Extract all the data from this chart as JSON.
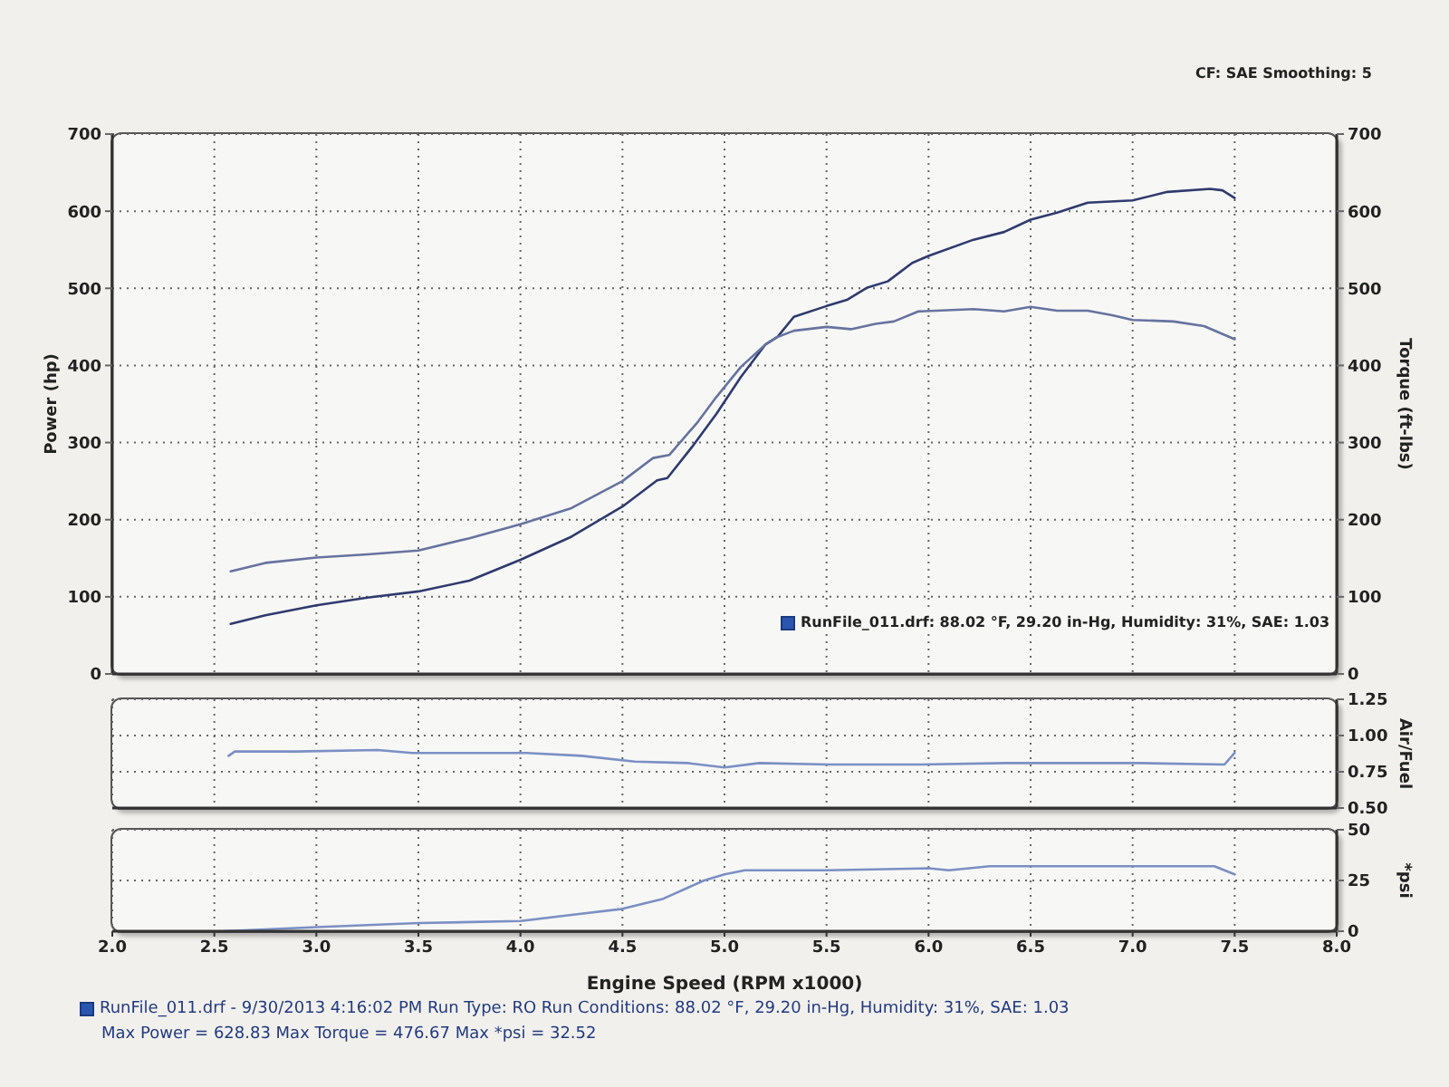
{
  "chart_data": [
    {
      "type": "line",
      "ylabel": "Power (hp)",
      "y2label": "Torque (ft-lbs)",
      "annotations": [
        "CF: SAE Smoothing: 5",
        "RunFile_011.drf: 88.02 °F, 29.20 in-Hg, Humidity: 31%, SAE: 1.03"
      ],
      "xlim": [
        2,
        8
      ],
      "xticks": [
        2,
        2.5,
        3,
        3.5,
        4,
        4.5,
        5,
        5.5,
        6,
        6.5,
        7,
        7.5,
        8
      ],
      "ylim": [
        0,
        700
      ],
      "yticks": [
        0,
        100,
        200,
        300,
        400,
        500,
        600,
        700
      ],
      "y2lim": [
        0,
        700
      ],
      "y2ticks": [
        0,
        100,
        200,
        300,
        400,
        500,
        600,
        700
      ],
      "grid": true,
      "tick_labels": "y",
      "series": [
        {
          "color": "#2f3a6e",
          "x": [
            2.58,
            2.75,
            3.0,
            3.25,
            3.5,
            3.75,
            4.0,
            4.25,
            4.5,
            4.67,
            4.72,
            4.84,
            4.96,
            5.08,
            5.2,
            5.26,
            5.34,
            5.5,
            5.6,
            5.7,
            5.8,
            5.92,
            6.0,
            6.22,
            6.37,
            6.5,
            6.63,
            6.78,
            7.0,
            7.17,
            7.38,
            7.44,
            7.5
          ],
          "values": [
            65,
            76,
            89,
            99,
            107,
            121,
            148,
            178,
            217,
            251,
            254,
            294,
            337,
            385,
            427,
            437,
            463,
            477,
            485,
            501,
            509,
            533,
            542,
            563,
            573,
            589,
            598,
            611,
            614,
            625,
            629,
            627,
            617
          ]
        },
        {
          "color": "#66739f",
          "axis": "y2",
          "x": [
            2.58,
            2.75,
            3.0,
            3.25,
            3.5,
            3.75,
            4.0,
            4.25,
            4.5,
            4.65,
            4.73,
            4.87,
            4.96,
            5.08,
            5.2,
            5.26,
            5.34,
            5.5,
            5.62,
            5.74,
            5.83,
            5.95,
            6.22,
            6.37,
            6.5,
            6.63,
            6.78,
            6.9,
            7.0,
            7.2,
            7.35,
            7.5
          ],
          "values": [
            133,
            144,
            151,
            155,
            160,
            176,
            194,
            215,
            250,
            280,
            284,
            327,
            359,
            398,
            427,
            437,
            445,
            450,
            447,
            454,
            457,
            470,
            473,
            470,
            476,
            471,
            471,
            465,
            459,
            457,
            451,
            434
          ]
        }
      ]
    },
    {
      "type": "line",
      "y2label": "Air/Fuel",
      "xlim": [
        2,
        8
      ],
      "xticks": [
        2,
        2.5,
        3,
        3.5,
        4,
        4.5,
        5,
        5.5,
        6,
        6.5,
        7,
        7.5,
        8
      ],
      "y2lim": [
        0.5,
        1.25
      ],
      "y2ticks": [
        {
          "value": 0.5,
          "label": "0.50"
        },
        {
          "value": 0.75,
          "label": "0.75"
        },
        {
          "value": 1,
          "label": "1.00"
        },
        {
          "value": 1.25,
          "label": "1.25"
        }
      ],
      "grid": true,
      "tick_labels": "y",
      "series": [
        {
          "color": "#7b8fc4",
          "axis": "y2",
          "x": [
            2.57,
            2.6,
            2.9,
            3.3,
            3.47,
            3.77,
            4.03,
            4.3,
            4.56,
            4.82,
            5.0,
            5.17,
            5.51,
            5.95,
            6.38,
            7.03,
            7.45,
            7.5
          ],
          "values": [
            0.86,
            0.89,
            0.89,
            0.9,
            0.88,
            0.88,
            0.88,
            0.86,
            0.82,
            0.81,
            0.78,
            0.81,
            0.8,
            0.8,
            0.81,
            0.81,
            0.8,
            0.88
          ]
        }
      ]
    },
    {
      "type": "line",
      "xlabel": "Engine Speed (RPM x1000)",
      "y2label": "*psi",
      "annotations": [
        "RunFile_011.drf - 9/30/2013 4:16:02 PM Run Type: RO Run Conditions: 88.02 °F, 29.20 in-Hg, Humidity: 31%, SAE: 1.03",
        "Max Power = 628.83 Max Torque = 476.67 Max *psi = 32.52"
      ],
      "xlim": [
        2,
        8
      ],
      "xticks": [
        {
          "value": 2,
          "label": "2.0"
        },
        {
          "value": 2.5,
          "label": "2.5"
        },
        {
          "value": 3,
          "label": "3.0"
        },
        {
          "value": 3.5,
          "label": "3.5"
        },
        {
          "value": 4,
          "label": "4.0"
        },
        {
          "value": 4.5,
          "label": "4.5"
        },
        {
          "value": 5,
          "label": "5.0"
        },
        {
          "value": 5.5,
          "label": "5.5"
        },
        {
          "value": 6,
          "label": "6.0"
        },
        {
          "value": 6.5,
          "label": "6.5"
        },
        {
          "value": 7,
          "label": "7.0"
        },
        {
          "value": 7.5,
          "label": "7.5"
        },
        {
          "value": 8,
          "label": "8.0"
        }
      ],
      "y2lim": [
        0,
        50
      ],
      "y2ticks": [
        0,
        25,
        50
      ],
      "grid": true,
      "series": [
        {
          "color": "#7b8fc4",
          "axis": "y2",
          "x": [
            2.55,
            3.0,
            3.5,
            4.0,
            4.25,
            4.5,
            4.7,
            4.9,
            5.0,
            5.1,
            5.3,
            5.5,
            6.0,
            6.1,
            6.3,
            7.0,
            7.4,
            7.5
          ],
          "values": [
            0,
            2,
            4,
            5,
            8,
            11,
            16,
            25,
            28,
            30,
            30,
            30,
            31,
            30,
            32,
            32,
            32,
            28
          ]
        }
      ]
    }
  ]
}
